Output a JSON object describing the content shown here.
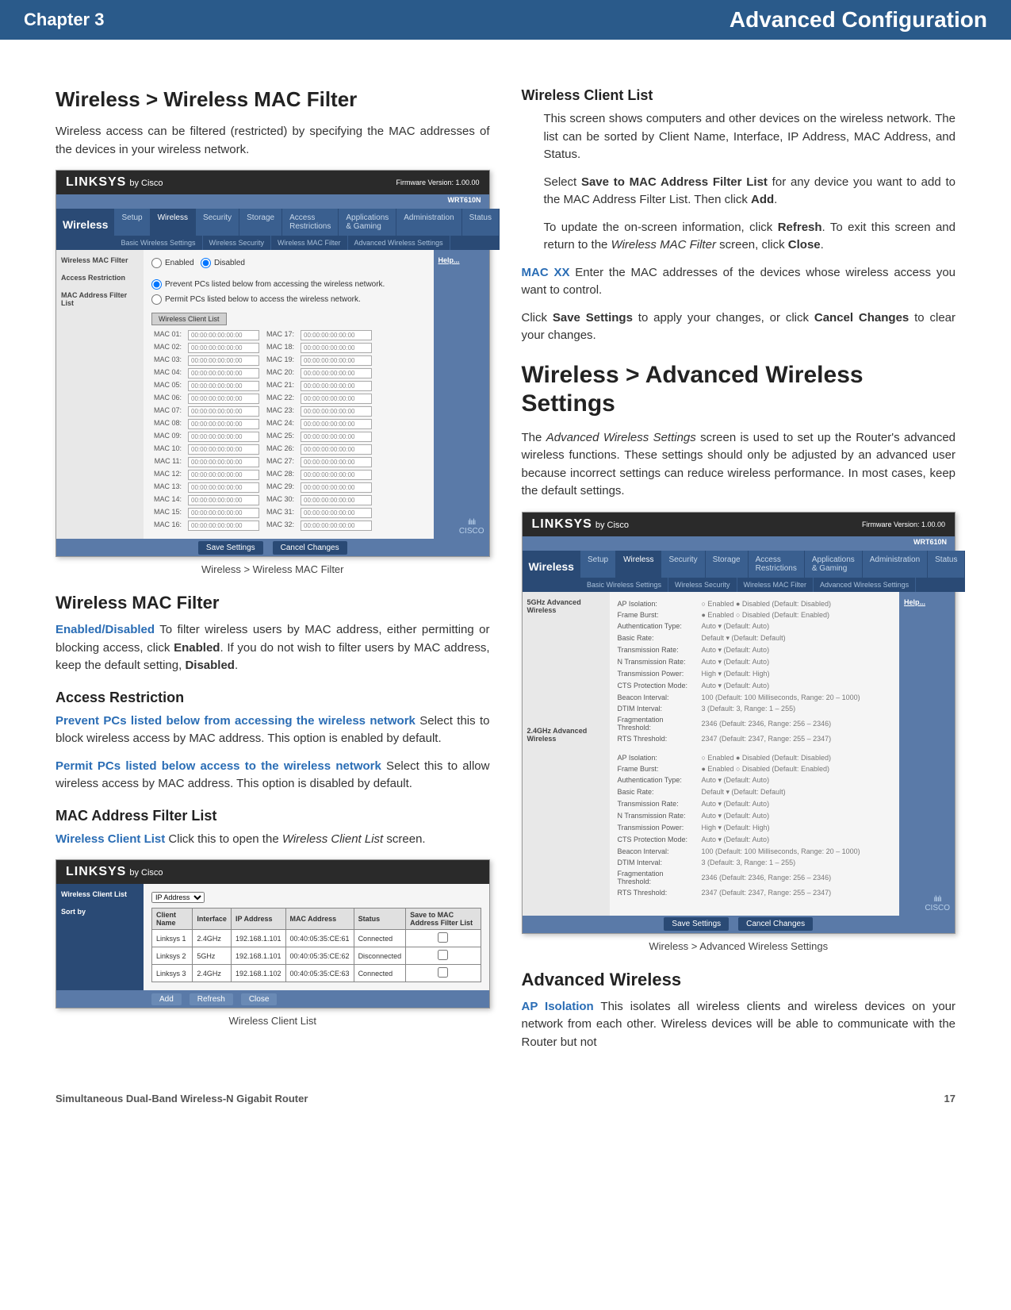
{
  "header": {
    "chapter": "Chapter 3",
    "title": "Advanced Configuration"
  },
  "left": {
    "h1": "Wireless > Wireless MAC Filter",
    "p1": "Wireless access can be filtered (restricted) by specifying the MAC addresses of the devices in your wireless network.",
    "caption1": "Wireless > Wireless MAC Filter",
    "h2": "Wireless MAC Filter",
    "enabled_label": "Enabled/Disabled",
    "enabled_text": "  To filter wireless users by MAC address, either permitting or blocking access, click ",
    "enabled_bold1": "Enabled",
    "enabled_text2": ". If you do not wish to filter users by MAC address, keep the default setting, ",
    "enabled_bold2": "Disabled",
    "enabled_text3": ".",
    "h3": "Access Restriction",
    "prevent_label": "Prevent PCs listed below from accessing the wireless network",
    "prevent_text": "  Select this to block wireless access by MAC address. This option is enabled by default.",
    "permit_label": "Permit PCs listed below access to the wireless network",
    "permit_text": "  Select this to allow wireless access by MAC address. This option is disabled by default.",
    "h4": "MAC Address Filter List",
    "wcl_label": "Wireless Client List",
    "wcl_text": "  Click this to open the ",
    "wcl_italic": "Wireless Client List",
    "wcl_text2": " screen.",
    "caption2": "Wireless Client List"
  },
  "right": {
    "h1": "Wireless Client List",
    "p1": "This screen shows computers and other devices on the wireless network. The list can be sorted by Client Name, Interface, IP Address, MAC Address, and Status.",
    "p2a": "Select ",
    "p2b": "Save to MAC Address Filter List",
    "p2c": " for any device you want to add to the MAC Address Filter List. Then click ",
    "p2d": "Add",
    "p2e": ".",
    "p3a": "To update the on-screen information, click ",
    "p3b": "Refresh",
    "p3c": ". To exit this screen and return to the ",
    "p3d": "Wireless MAC Filter",
    "p3e": " screen, click ",
    "p3f": "Close",
    "p3g": ".",
    "macxx_label": "MAC XX",
    "macxx_text": "  Enter the MAC addresses of the devices whose wireless access you want to control.",
    "p4a": "Click ",
    "p4b": "Save Settings",
    "p4c": " to apply your changes, or click ",
    "p4d": "Cancel Changes",
    "p4e": " to clear your changes.",
    "h2": "Wireless > Advanced Wireless Settings",
    "p5a": "The ",
    "p5b": "Advanced Wireless Settings",
    "p5c": " screen is used to set up the Router's advanced wireless functions. These settings should only be adjusted by an advanced user because incorrect settings can reduce wireless performance. In most cases, keep the default settings.",
    "caption1": "Wireless > Advanced Wireless Settings",
    "h3": "Advanced Wireless",
    "ap_label": "AP Isolation",
    "ap_text": "  This isolates all wireless clients and wireless devices on your network from each other. Wireless devices will be able to communicate with the Router but not"
  },
  "linksys": {
    "logo": "LINKSYS",
    "by": "by Cisco",
    "fw": "Firmware Version: 1.00.00",
    "model": "WRT610N",
    "nav_label": "Wireless",
    "tabs": [
      "Setup",
      "Wireless",
      "Security",
      "Storage",
      "Access Restrictions",
      "Applications & Gaming",
      "Administration",
      "Status"
    ],
    "subtabs1": [
      "Basic Wireless Settings",
      "Wireless Security",
      "Wireless MAC Filter",
      "Advanced Wireless Settings"
    ],
    "help": "Help...",
    "save": "Save Settings",
    "cancel": "Cancel Changes",
    "cisco1": "ılıılı",
    "cisco2": "CISCO"
  },
  "macfilter": {
    "side1": "Wireless MAC Filter",
    "side2": "Access Restriction",
    "side3": "MAC Address Filter List",
    "enabled": "Enabled",
    "disabled": "Disabled",
    "prevent": "Prevent PCs listed below from accessing the wireless network.",
    "permit": "Permit PCs listed below to access the wireless network.",
    "btn": "Wireless Client List",
    "mac_prefix": "MAC",
    "mac_placeholder": "00:00:00:00:00:00",
    "count": 32
  },
  "clientlist": {
    "side_label": "Wireless Client List",
    "sortby_side": "Sort by",
    "sortby": "IP Address",
    "cols": [
      "Client Name",
      "Interface",
      "IP Address",
      "MAC Address",
      "Status",
      "Save to MAC Address Filter List"
    ],
    "rows": [
      [
        "Linksys 1",
        "2.4GHz",
        "192.168.1.101",
        "00:40:05:35:CE:61",
        "Connected"
      ],
      [
        "Linksys 2",
        "5GHz",
        "192.168.1.101",
        "00:40:05:35:CE:62",
        "Disconnected"
      ],
      [
        "Linksys 3",
        "2.4GHz",
        "192.168.1.102",
        "00:40:05:35:CE:63",
        "Connected"
      ]
    ],
    "btns": [
      "Add",
      "Refresh",
      "Close"
    ]
  },
  "advwireless": {
    "side1": "5GHz Advanced Wireless",
    "side2": "2.4GHz Advanced Wireless",
    "rows": [
      {
        "lbl": "AP Isolation:",
        "ctl": "○ Enabled  ● Disabled  (Default: Disabled)"
      },
      {
        "lbl": "Frame Burst:",
        "ctl": "● Enabled  ○ Disabled  (Default: Enabled)"
      },
      {
        "lbl": "Authentication Type:",
        "ctl": "Auto ▾  (Default: Auto)"
      },
      {
        "lbl": "Basic Rate:",
        "ctl": "Default ▾  (Default: Default)"
      },
      {
        "lbl": "Transmission Rate:",
        "ctl": "Auto ▾  (Default: Auto)"
      },
      {
        "lbl": "N Transmission Rate:",
        "ctl": "Auto ▾  (Default: Auto)"
      },
      {
        "lbl": "Transmission Power:",
        "ctl": "High ▾  (Default: High)"
      },
      {
        "lbl": "CTS Protection Mode:",
        "ctl": "Auto ▾  (Default: Auto)"
      },
      {
        "lbl": "Beacon Interval:",
        "ctl": "100   (Default: 100 Milliseconds, Range: 20 – 1000)"
      },
      {
        "lbl": "DTIM Interval:",
        "ctl": "3   (Default: 3, Range: 1 – 255)"
      },
      {
        "lbl": "Fragmentation Threshold:",
        "ctl": "2346   (Default: 2346, Range: 256 – 2346)"
      },
      {
        "lbl": "RTS Threshold:",
        "ctl": "2347   (Default: 2347, Range: 255 – 2347)"
      }
    ]
  },
  "footer": {
    "product": "Simultaneous Dual-Band Wireless-N Gigabit Router",
    "page": "17"
  }
}
